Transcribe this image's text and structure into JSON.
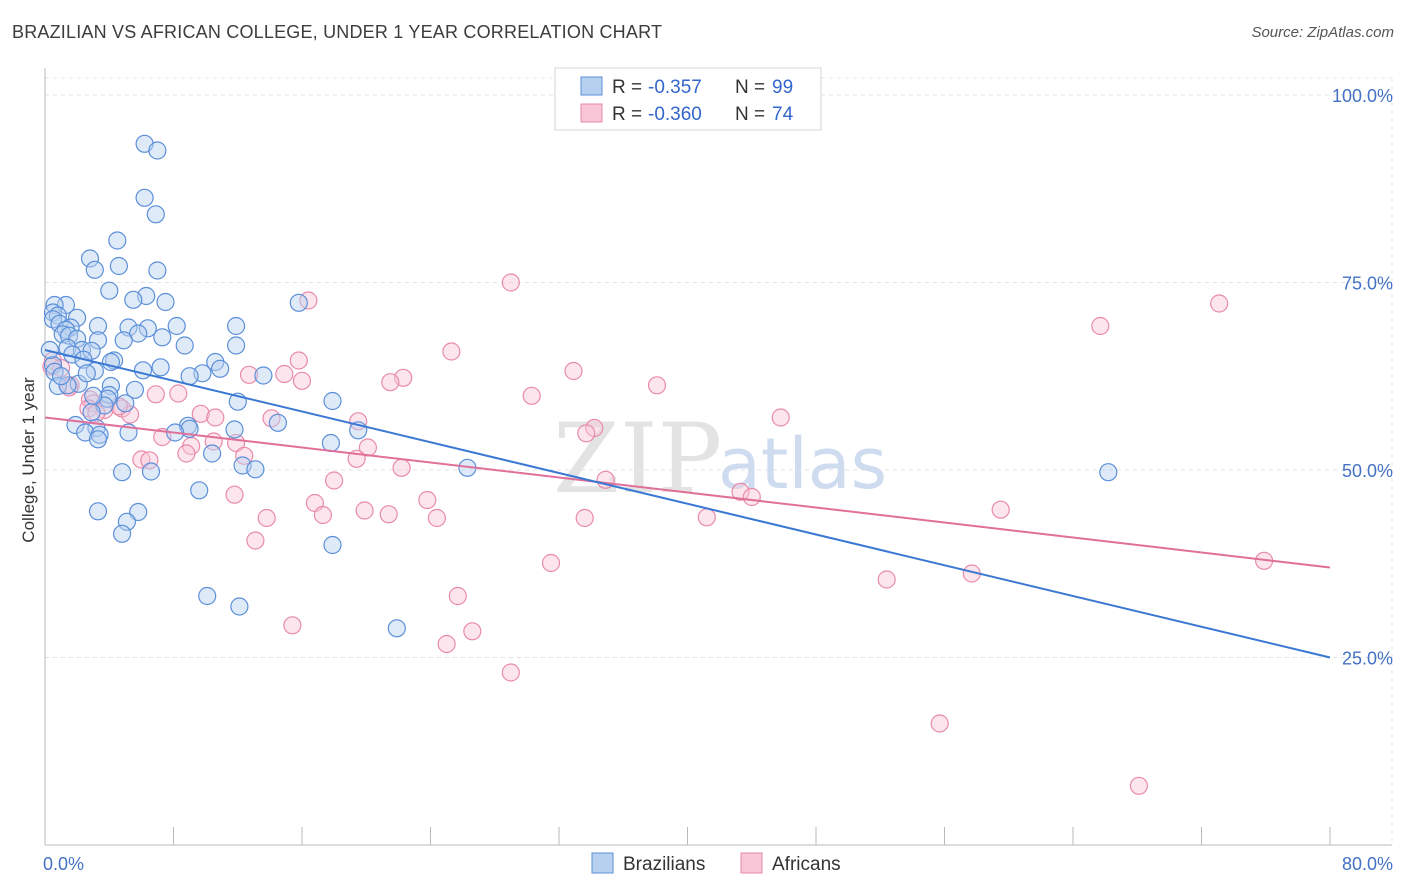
{
  "header": {
    "title": "BRAZILIAN VS AFRICAN COLLEGE, UNDER 1 YEAR CORRELATION CHART",
    "source": "Source: ZipAtlas.com"
  },
  "watermark": {
    "zip": "ZIP",
    "atlas": "atlas"
  },
  "legend": {
    "rows": [
      {
        "r_label": "R =",
        "r_value": "-0.357",
        "n_label": "N =",
        "n_value": "99"
      },
      {
        "r_label": "R =",
        "r_value": "-0.360",
        "n_label": "N =",
        "n_value": "74"
      }
    ]
  },
  "bottom_legend": {
    "items": [
      "Brazilians",
      "Africans"
    ]
  },
  "colors": {
    "blue_fill": "#b8d0f0",
    "blue_stroke": "#5b8fd9",
    "blue_line": "#3a78d4",
    "pink_fill": "#f8c6d6",
    "pink_stroke": "#e98aab",
    "pink_line": "#e0709a"
  },
  "chart_data": {
    "type": "scatter",
    "title": "BRAZILIAN VS AFRICAN COLLEGE, UNDER 1 YEAR CORRELATION CHART",
    "xlabel": "",
    "ylabel": "College, Under 1 year",
    "xlim": [
      0,
      80
    ],
    "ylim": [
      0,
      102
    ],
    "x_tick_labels": [
      "0.0%",
      "80.0%"
    ],
    "y_ticks": [
      25,
      50,
      75,
      100
    ],
    "y_tick_labels": [
      "25.0%",
      "50.0%",
      "75.0%",
      "100.0%"
    ],
    "grid": true,
    "legend_position": "top-center",
    "series": [
      {
        "name": "Brazilians",
        "color": "#5b8fd9",
        "trend": {
          "x": [
            0,
            80
          ],
          "y": [
            66,
            25
          ]
        },
        "points": [
          [
            6.2,
            93.5
          ],
          [
            7.0,
            92.6
          ],
          [
            6.2,
            86.3
          ],
          [
            6.9,
            84.1
          ],
          [
            4.5,
            80.6
          ],
          [
            2.8,
            78.2
          ],
          [
            4.6,
            77.2
          ],
          [
            3.1,
            76.7
          ],
          [
            7.0,
            76.6
          ],
          [
            4.0,
            73.9
          ],
          [
            6.3,
            73.2
          ],
          [
            7.5,
            72.4
          ],
          [
            1.3,
            72.0
          ],
          [
            0.6,
            72.0
          ],
          [
            0.5,
            71.0
          ],
          [
            0.8,
            70.6
          ],
          [
            15.8,
            72.3
          ],
          [
            5.5,
            72.7
          ],
          [
            2.0,
            70.3
          ],
          [
            0.5,
            70.1
          ],
          [
            0.9,
            69.5
          ],
          [
            1.6,
            69.0
          ],
          [
            1.3,
            68.7
          ],
          [
            3.3,
            69.2
          ],
          [
            5.2,
            69.0
          ],
          [
            8.2,
            69.2
          ],
          [
            11.9,
            69.2
          ],
          [
            6.4,
            68.9
          ],
          [
            5.8,
            68.2
          ],
          [
            1.1,
            68.1
          ],
          [
            1.5,
            67.9
          ],
          [
            2.0,
            67.5
          ],
          [
            3.3,
            67.3
          ],
          [
            7.3,
            67.7
          ],
          [
            4.9,
            67.3
          ],
          [
            11.9,
            66.6
          ],
          [
            8.7,
            66.6
          ],
          [
            1.4,
            66.3
          ],
          [
            2.3,
            66.0
          ],
          [
            2.9,
            65.9
          ],
          [
            1.7,
            65.4
          ],
          [
            2.4,
            64.7
          ],
          [
            4.3,
            64.6
          ],
          [
            4.1,
            64.4
          ],
          [
            10.6,
            64.4
          ],
          [
            0.5,
            64.0
          ],
          [
            0.6,
            63.1
          ],
          [
            3.1,
            63.2
          ],
          [
            7.2,
            63.7
          ],
          [
            10.9,
            63.5
          ],
          [
            9.8,
            62.9
          ],
          [
            9.0,
            62.5
          ],
          [
            13.6,
            62.6
          ],
          [
            0.8,
            61.2
          ],
          [
            2.1,
            61.5
          ],
          [
            1.4,
            61.3
          ],
          [
            4.1,
            61.2
          ],
          [
            5.6,
            60.7
          ],
          [
            4.0,
            60.0
          ],
          [
            3.9,
            59.5
          ],
          [
            12.0,
            59.1
          ],
          [
            17.9,
            59.2
          ],
          [
            5.0,
            58.9
          ],
          [
            3.7,
            58.6
          ],
          [
            2.9,
            57.7
          ],
          [
            14.5,
            56.3
          ],
          [
            8.9,
            55.9
          ],
          [
            1.9,
            56.0
          ],
          [
            3.2,
            55.6
          ],
          [
            9.0,
            55.5
          ],
          [
            11.8,
            55.4
          ],
          [
            19.5,
            55.3
          ],
          [
            2.5,
            55.0
          ],
          [
            5.2,
            55.0
          ],
          [
            3.4,
            54.7
          ],
          [
            3.3,
            54.1
          ],
          [
            17.8,
            53.6
          ],
          [
            10.4,
            52.2
          ],
          [
            12.3,
            50.6
          ],
          [
            13.1,
            50.1
          ],
          [
            26.3,
            50.3
          ],
          [
            6.6,
            49.8
          ],
          [
            4.8,
            49.7
          ],
          [
            66.2,
            49.7
          ],
          [
            9.6,
            47.3
          ],
          [
            3.3,
            44.5
          ],
          [
            5.8,
            44.4
          ],
          [
            5.1,
            43.1
          ],
          [
            4.8,
            41.5
          ],
          [
            17.9,
            40.0
          ],
          [
            10.1,
            33.2
          ],
          [
            12.1,
            31.8
          ],
          [
            21.9,
            28.9
          ],
          [
            1.0,
            62.5
          ],
          [
            2.6,
            62.9
          ],
          [
            6.1,
            63.3
          ],
          [
            3.0,
            59.9
          ],
          [
            8.1,
            55.0
          ],
          [
            0.3,
            66.0
          ]
        ]
      },
      {
        "name": "Africans",
        "color": "#e98aab",
        "trend": {
          "x": [
            0,
            80
          ],
          "y": [
            57,
            37
          ]
        },
        "points": [
          [
            29.0,
            75.0
          ],
          [
            16.4,
            72.6
          ],
          [
            73.1,
            72.2
          ],
          [
            65.7,
            69.2
          ],
          [
            25.3,
            65.8
          ],
          [
            0.5,
            64.6
          ],
          [
            0.4,
            63.8
          ],
          [
            15.8,
            64.6
          ],
          [
            32.9,
            63.2
          ],
          [
            12.7,
            62.7
          ],
          [
            14.9,
            62.8
          ],
          [
            22.3,
            62.3
          ],
          [
            21.5,
            61.7
          ],
          [
            38.1,
            61.3
          ],
          [
            1.6,
            61.3
          ],
          [
            1.5,
            61.0
          ],
          [
            6.9,
            60.1
          ],
          [
            8.3,
            60.2
          ],
          [
            30.3,
            59.9
          ],
          [
            2.8,
            59.4
          ],
          [
            3.0,
            58.9
          ],
          [
            2.7,
            58.2
          ],
          [
            4.8,
            58.2
          ],
          [
            5.3,
            57.4
          ],
          [
            3.7,
            58.0
          ],
          [
            9.7,
            57.5
          ],
          [
            10.6,
            57.0
          ],
          [
            14.1,
            56.9
          ],
          [
            19.5,
            56.5
          ],
          [
            45.8,
            57.0
          ],
          [
            34.2,
            55.6
          ],
          [
            33.7,
            54.9
          ],
          [
            7.3,
            54.4
          ],
          [
            10.5,
            53.8
          ],
          [
            11.9,
            53.6
          ],
          [
            9.1,
            53.2
          ],
          [
            20.1,
            53.0
          ],
          [
            6.0,
            51.4
          ],
          [
            8.8,
            52.2
          ],
          [
            12.4,
            51.9
          ],
          [
            19.4,
            51.5
          ],
          [
            22.2,
            50.3
          ],
          [
            6.5,
            51.3
          ],
          [
            18.0,
            48.6
          ],
          [
            34.9,
            48.7
          ],
          [
            43.3,
            47.1
          ],
          [
            11.8,
            46.7
          ],
          [
            16.8,
            45.6
          ],
          [
            23.8,
            46.0
          ],
          [
            19.9,
            44.6
          ],
          [
            21.4,
            44.1
          ],
          [
            17.3,
            44.0
          ],
          [
            13.8,
            43.6
          ],
          [
            24.4,
            43.6
          ],
          [
            33.6,
            43.6
          ],
          [
            41.2,
            43.7
          ],
          [
            59.5,
            44.7
          ],
          [
            13.1,
            40.6
          ],
          [
            31.5,
            37.6
          ],
          [
            75.9,
            37.9
          ],
          [
            57.7,
            36.2
          ],
          [
            52.4,
            35.4
          ],
          [
            25.7,
            33.2
          ],
          [
            15.4,
            29.3
          ],
          [
            26.6,
            28.5
          ],
          [
            25.0,
            26.8
          ],
          [
            29.0,
            23.0
          ],
          [
            55.7,
            16.2
          ],
          [
            68.1,
            7.9
          ],
          [
            44.0,
            46.4
          ],
          [
            4.6,
            58.5
          ],
          [
            1.0,
            63.6
          ],
          [
            16.0,
            61.9
          ],
          [
            3.2,
            57.6
          ]
        ]
      }
    ]
  }
}
